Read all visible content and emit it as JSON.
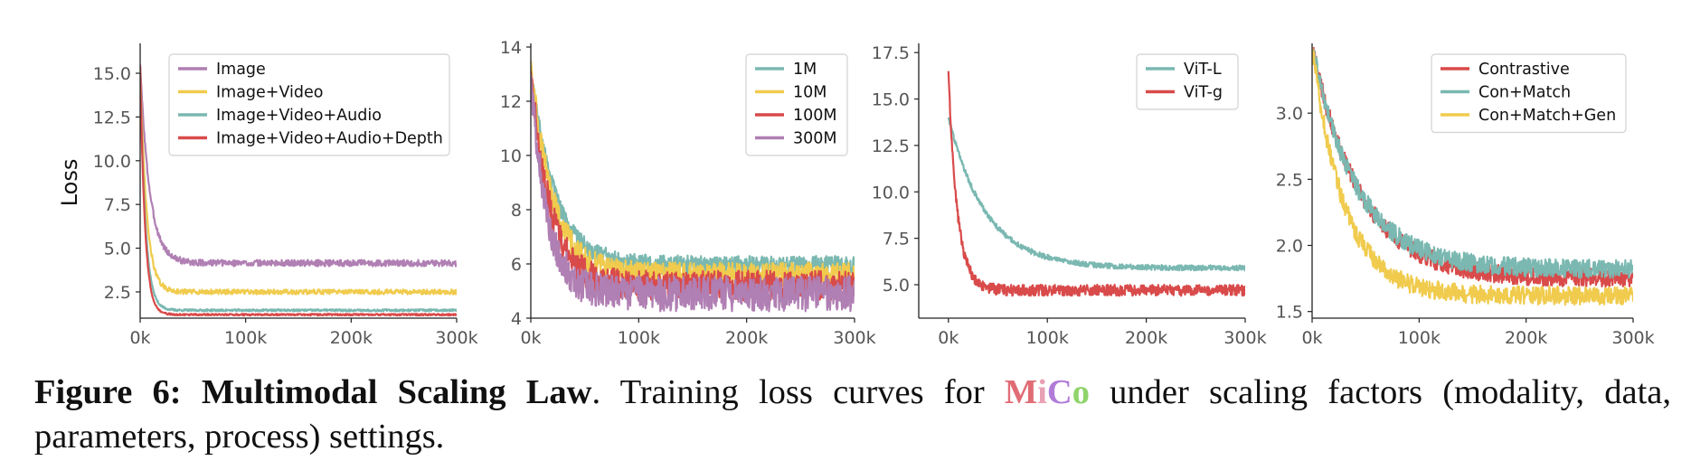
{
  "caption": {
    "label": "Figure 6:",
    "bold_title": "Multimodal Scaling Law",
    "text_before": ". Training loss curves for ",
    "model_name": [
      "M",
      "i",
      "C",
      "o"
    ],
    "text_after": " under scaling factors (modality, data, parameters, process) settings.",
    "model_colors": [
      "#e06c75",
      "#e8a0b4",
      "#b07cd8",
      "#8fd46a"
    ]
  },
  "chart_data": [
    {
      "type": "line",
      "ylabel": "Loss",
      "xlabel": "",
      "xlim": [
        0,
        300000
      ],
      "ylim": [
        1.0,
        16.5
      ],
      "xticks": [
        0,
        100000,
        200000,
        300000
      ],
      "xtick_labels": [
        "0k",
        "100k",
        "200k",
        "300k"
      ],
      "yticks": [
        2.5,
        5.0,
        7.5,
        10.0,
        12.5,
        15.0
      ],
      "ytick_labels": [
        "2.5",
        "5.0",
        "7.5",
        "10.0",
        "12.5",
        "15.0"
      ],
      "legend_position": "top-right",
      "series": [
        {
          "name": "Image",
          "color": "#b07fb3",
          "peak": 15.5,
          "end": 4.15,
          "tau": 9000,
          "noise": 0.18
        },
        {
          "name": "Image+Video",
          "color": "#f0cb4d",
          "peak": 15.3,
          "end": 2.5,
          "tau": 6000,
          "noise": 0.14
        },
        {
          "name": "Image+Video+Audio",
          "color": "#7ab8b1",
          "peak": 15.2,
          "end": 1.45,
          "tau": 5000,
          "noise": 0.06
        },
        {
          "name": "Image+Video+Audio+Depth",
          "color": "#d94a4a",
          "peak": 15.4,
          "end": 1.2,
          "tau": 4500,
          "noise": 0.05
        }
      ]
    },
    {
      "type": "line",
      "ylabel": "",
      "xlabel": "",
      "xlim": [
        0,
        300000
      ],
      "ylim": [
        4,
        14
      ],
      "xticks": [
        0,
        100000,
        200000,
        300000
      ],
      "xtick_labels": [
        "0k",
        "100k",
        "200k",
        "300k"
      ],
      "yticks": [
        4,
        6,
        8,
        10,
        12,
        14
      ],
      "ytick_labels": [
        "4",
        "6",
        "8",
        "10",
        "12",
        "14"
      ],
      "legend_position": "top-right",
      "series": [
        {
          "name": "1M",
          "color": "#7ab8b1",
          "peak": 13.2,
          "end": 5.95,
          "tau": 22000,
          "noise": 0.35
        },
        {
          "name": "10M",
          "color": "#f0cb4d",
          "peak": 13.5,
          "end": 5.6,
          "tau": 20000,
          "noise": 0.45
        },
        {
          "name": "100M",
          "color": "#d94a4a",
          "peak": 13.1,
          "end": 5.2,
          "tau": 18000,
          "noise": 0.55
        },
        {
          "name": "300M",
          "color": "#b07fb3",
          "peak": 13.0,
          "end": 4.9,
          "tau": 15000,
          "noise": 0.65
        }
      ]
    },
    {
      "type": "line",
      "ylabel": "",
      "xlabel": "",
      "xlim": [
        -30000,
        300000
      ],
      "ylim": [
        3.2,
        17.8
      ],
      "xticks": [
        0,
        100000,
        200000,
        300000
      ],
      "xtick_labels": [
        "0k",
        "100k",
        "200k",
        "300k"
      ],
      "yticks": [
        5.0,
        7.5,
        10.0,
        12.5,
        15.0,
        17.5
      ],
      "ytick_labels": [
        "5.0",
        "7.5",
        "10.0",
        "12.5",
        "15.0",
        "17.5"
      ],
      "legend_position": "top-right",
      "series": [
        {
          "name": "ViT-L",
          "color": "#7ab8b1",
          "peak": 14.0,
          "end": 5.9,
          "tau": 38000,
          "noise": 0.14
        },
        {
          "name": "ViT-g",
          "color": "#d94a4a",
          "peak": 16.5,
          "end": 4.7,
          "tau": 9000,
          "noise": 0.3
        }
      ]
    },
    {
      "type": "line",
      "ylabel": "",
      "xlabel": "",
      "xlim": [
        0,
        300000
      ],
      "ylim": [
        1.45,
        3.5
      ],
      "xticks": [
        0,
        100000,
        200000,
        300000
      ],
      "xtick_labels": [
        "0k",
        "100k",
        "200k",
        "300k"
      ],
      "yticks": [
        1.5,
        2.0,
        2.5,
        3.0
      ],
      "ytick_labels": [
        "1.5",
        "2.0",
        "2.5",
        "3.0"
      ],
      "legend_position": "top-right",
      "series": [
        {
          "name": "Contrastive",
          "color": "#d94a4a",
          "peak": 3.5,
          "end": 1.75,
          "tau": 45000,
          "noise": 0.07
        },
        {
          "name": "Con+Match",
          "color": "#7ab8b1",
          "peak": 3.5,
          "end": 1.82,
          "tau": 42000,
          "noise": 0.07
        },
        {
          "name": "Con+Match+Gen",
          "color": "#f0cb4d",
          "peak": 3.5,
          "end": 1.62,
          "tau": 30000,
          "noise": 0.07
        }
      ]
    }
  ]
}
